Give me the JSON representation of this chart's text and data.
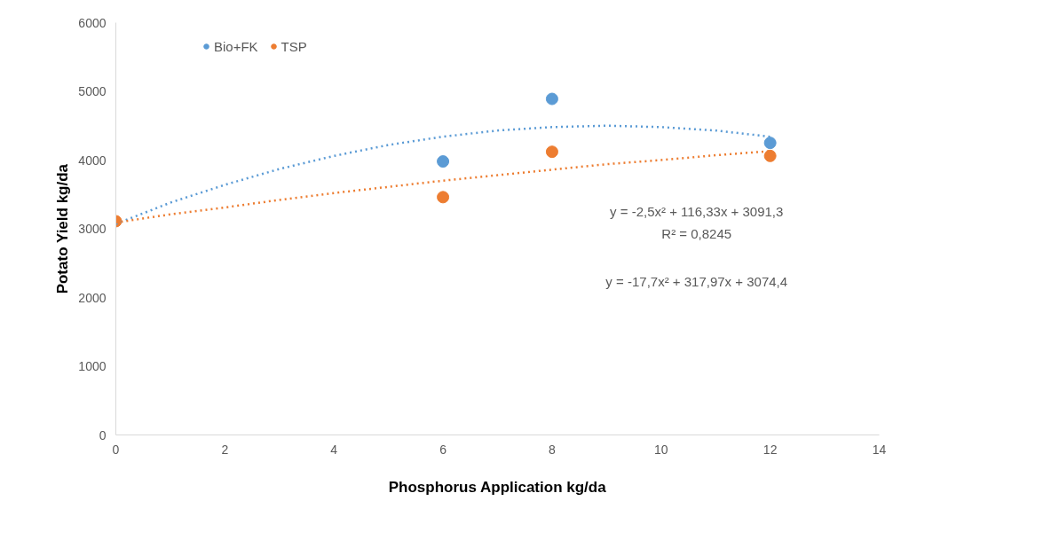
{
  "chart_data": {
    "type": "scatter",
    "xlabel": "Phosphorus Application kg/da",
    "ylabel": "Potato Yield kg/da",
    "xlim": [
      0,
      14
    ],
    "xticks": [
      0,
      2,
      4,
      6,
      8,
      10,
      12,
      14
    ],
    "ylim": [
      0,
      6000
    ],
    "yticks": [
      0,
      1000,
      2000,
      3000,
      4000,
      5000,
      6000
    ],
    "grid": false,
    "legend": "top left",
    "marker": "circle",
    "series": [
      {
        "name": "Bio+FK",
        "color": "#5b9bd5",
        "x": [
          6,
          8,
          12
        ],
        "values": [
          3980,
          4890,
          4250
        ]
      },
      {
        "name": "TSP",
        "color": "#ed7d31",
        "x": [
          0,
          6,
          8,
          12
        ],
        "values": [
          3110,
          3460,
          4120,
          4060
        ]
      },
      {
        "type": "line",
        "line_style": "dotted",
        "marker": "none",
        "color": "#5b9bd5",
        "x": [
          0,
          1,
          2,
          3,
          4,
          5,
          6,
          7,
          8,
          9,
          10,
          11,
          12
        ],
        "values": [
          3070,
          3380,
          3640,
          3870,
          4060,
          4220,
          4340,
          4430,
          4480,
          4500,
          4480,
          4430,
          4340
        ]
      },
      {
        "type": "line",
        "line_style": "dotted",
        "marker": "none",
        "color": "#ed7d31",
        "x": [
          0,
          1,
          2,
          3,
          4,
          5,
          6,
          7,
          8,
          9,
          10,
          11,
          12
        ],
        "values": [
          3090,
          3210,
          3310,
          3420,
          3520,
          3610,
          3700,
          3780,
          3860,
          3940,
          4000,
          4070,
          4130
        ]
      }
    ],
    "annotations": [
      "y = -2,5x² + 116,33x + 3091,3",
      "R² = 0,8245",
      "y = -17,7x² + 317,97x + 3074,4"
    ]
  }
}
